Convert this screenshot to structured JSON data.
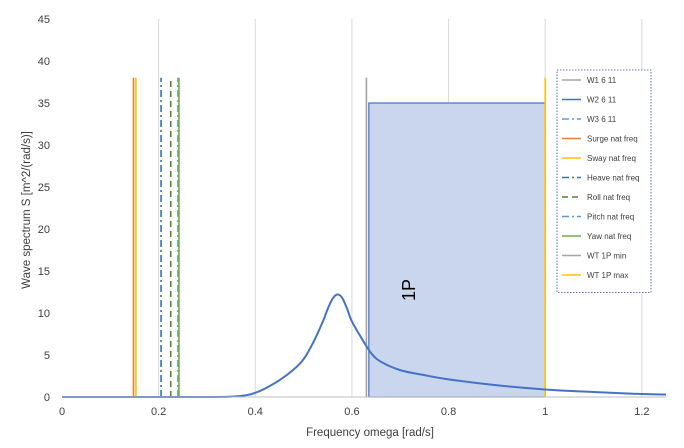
{
  "chart_data": {
    "type": "line",
    "xlabel": "Frequency omega [rad/s]",
    "ylabel": "Wave spectrum S [m^2/(rad/s)]",
    "xlim": [
      0,
      1.25
    ],
    "ylim": [
      0,
      45
    ],
    "x_ticks": [
      "0",
      "0.2",
      "0.4",
      "0.6",
      "0.8",
      "1",
      "1.2"
    ],
    "x_tick_values": [
      0,
      0.2,
      0.4,
      0.6,
      0.8,
      1.0,
      1.2
    ],
    "y_ticks": [
      "0",
      "5",
      "10",
      "15",
      "20",
      "25",
      "30",
      "35",
      "40",
      "45"
    ],
    "y_tick_values": [
      0,
      5,
      10,
      15,
      20,
      25,
      30,
      35,
      40,
      45
    ],
    "grid": "vertical",
    "legend_position": "right",
    "shaded_region": {
      "label": "1P",
      "x": [
        0.635,
        1.0
      ],
      "y": [
        0,
        35
      ],
      "fill": "#c9d6ee",
      "stroke": "#4472c4"
    },
    "spectrum": {
      "name": "W2 6 11",
      "color": "#4472c4",
      "x": [
        0,
        0.3,
        0.35,
        0.38,
        0.4,
        0.42,
        0.45,
        0.48,
        0.5,
        0.52,
        0.54,
        0.55,
        0.56,
        0.57,
        0.58,
        0.59,
        0.6,
        0.62,
        0.64,
        0.66,
        0.7,
        0.75,
        0.8,
        0.9,
        1.0,
        1.1,
        1.2,
        1.25
      ],
      "y": [
        0,
        0,
        0.05,
        0.2,
        0.5,
        1.0,
        2.0,
        3.3,
        4.5,
        6.5,
        9.0,
        10.5,
        11.7,
        12.2,
        11.8,
        10.5,
        9.0,
        7.0,
        5.2,
        4.2,
        3.2,
        2.6,
        2.1,
        1.4,
        0.9,
        0.6,
        0.35,
        0.3
      ]
    },
    "vlines": [
      {
        "name": "Surge nat freq",
        "x": 0.148,
        "ymax": 38,
        "color": "#ed7d31",
        "dash": "solid"
      },
      {
        "name": "Sway nat freq",
        "x": 0.153,
        "ymax": 38,
        "color": "#ffc000",
        "dash": "solid"
      },
      {
        "name": "Heave nat freq",
        "x": 0.205,
        "ymax": 38,
        "color": "#2e75b6",
        "dash": "dashdot"
      },
      {
        "name": "Roll nat freq",
        "x": 0.225,
        "ymax": 38,
        "color": "#548235",
        "dash": "dash"
      },
      {
        "name": "Pitch nat freq",
        "x": 0.24,
        "ymax": 38,
        "color": "#5b9bd5",
        "dash": "dashdot"
      },
      {
        "name": "Yaw nat freq",
        "x": 0.242,
        "ymax": 38,
        "color": "#70ad47",
        "dash": "solid"
      },
      {
        "name": "WT 1P min",
        "x": 0.63,
        "ymax": 38,
        "color": "#a5a5a5",
        "dash": "solid"
      },
      {
        "name": "WT 1P max",
        "x": 1.0,
        "ymax": 38,
        "color": "#ffc000",
        "dash": "solid"
      }
    ],
    "legend": [
      {
        "label": "W1 6 11",
        "color": "#a5a5a5",
        "dash": "solid"
      },
      {
        "label": "W2 6 11",
        "color": "#4472c4",
        "dash": "solid"
      },
      {
        "label": "W3 6 11",
        "color": "#5b9bd5",
        "dash": "dashdot"
      },
      {
        "label": "Surge nat freq",
        "color": "#ed7d31",
        "dash": "solid"
      },
      {
        "label": "Sway nat freq",
        "color": "#ffc000",
        "dash": "solid"
      },
      {
        "label": "Heave nat freq",
        "color": "#2e75b6",
        "dash": "dashdot"
      },
      {
        "label": "Roll nat freq",
        "color": "#548235",
        "dash": "dash"
      },
      {
        "label": "Pitch nat freq",
        "color": "#5b9bd5",
        "dash": "dashdot"
      },
      {
        "label": "Yaw nat freq",
        "color": "#70ad47",
        "dash": "solid"
      },
      {
        "label": "WT 1P min",
        "color": "#a5a5a5",
        "dash": "solid"
      },
      {
        "label": "WT 1P max",
        "color": "#ffc000",
        "dash": "solid"
      }
    ]
  }
}
